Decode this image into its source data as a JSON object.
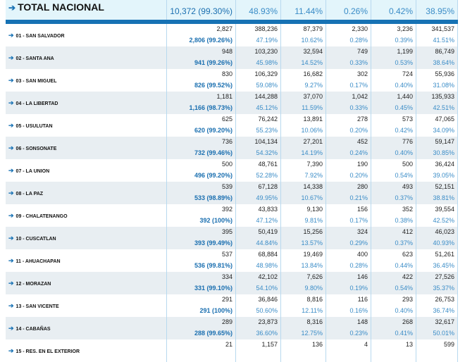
{
  "total": {
    "label": "TOTAL NACIONAL",
    "actas": "10,372 (99.30%)",
    "pcts": [
      "48.93%",
      "11.44%",
      "0.26%",
      "0.42%",
      "38.95%"
    ]
  },
  "departments": [
    {
      "name": "01 - SAN SALVADOR",
      "total": "2,827",
      "votes": [
        "388,236",
        "87,379",
        "2,330",
        "3,236",
        "341,537"
      ],
      "actas": "2,806 (99.26%)",
      "pcts": [
        "47.19%",
        "10.62%",
        "0.28%",
        "0.39%",
        "41.51%"
      ]
    },
    {
      "name": "02 - SANTA ANA",
      "total": "948",
      "votes": [
        "103,230",
        "32,594",
        "749",
        "1,199",
        "86,749"
      ],
      "actas": "941 (99.26%)",
      "pcts": [
        "45.98%",
        "14.52%",
        "0.33%",
        "0.53%",
        "38.64%"
      ]
    },
    {
      "name": "03 - SAN MIGUEL",
      "total": "830",
      "votes": [
        "106,329",
        "16,682",
        "302",
        "724",
        "55,936"
      ],
      "actas": "826 (99.52%)",
      "pcts": [
        "59.08%",
        "9.27%",
        "0.17%",
        "0.40%",
        "31.08%"
      ]
    },
    {
      "name": "04 - LA LIBERTAD",
      "total": "1,181",
      "votes": [
        "144,288",
        "37,070",
        "1,042",
        "1,440",
        "135,933"
      ],
      "actas": "1,166 (98.73%)",
      "pcts": [
        "45.12%",
        "11.59%",
        "0.33%",
        "0.45%",
        "42.51%"
      ]
    },
    {
      "name": "05 - USULUTAN",
      "total": "625",
      "votes": [
        "76,242",
        "13,891",
        "278",
        "573",
        "47,065"
      ],
      "actas": "620 (99.20%)",
      "pcts": [
        "55.23%",
        "10.06%",
        "0.20%",
        "0.42%",
        "34.09%"
      ]
    },
    {
      "name": "06 - SONSONATE",
      "total": "736",
      "votes": [
        "104,134",
        "27,201",
        "452",
        "776",
        "59,147"
      ],
      "actas": "732 (99.46%)",
      "pcts": [
        "54.32%",
        "14.19%",
        "0.24%",
        "0.40%",
        "30.85%"
      ]
    },
    {
      "name": "07 - LA UNION",
      "total": "500",
      "votes": [
        "48,761",
        "7,390",
        "190",
        "500",
        "36,424"
      ],
      "actas": "496 (99.20%)",
      "pcts": [
        "52.28%",
        "7.92%",
        "0.20%",
        "0.54%",
        "39.05%"
      ]
    },
    {
      "name": "08 - LA PAZ",
      "total": "539",
      "votes": [
        "67,128",
        "14,338",
        "280",
        "493",
        "52,151"
      ],
      "actas": "533 (98.89%)",
      "pcts": [
        "49.95%",
        "10.67%",
        "0.21%",
        "0.37%",
        "38.81%"
      ]
    },
    {
      "name": "09 - CHALATENANGO",
      "total": "392",
      "votes": [
        "43,833",
        "9,130",
        "156",
        "352",
        "39,554"
      ],
      "actas": "392 (100%)",
      "pcts": [
        "47.12%",
        "9.81%",
        "0.17%",
        "0.38%",
        "42.52%"
      ]
    },
    {
      "name": "10 - CUSCATLAN",
      "total": "395",
      "votes": [
        "50,419",
        "15,256",
        "324",
        "412",
        "46,023"
      ],
      "actas": "393 (99.49%)",
      "pcts": [
        "44.84%",
        "13.57%",
        "0.29%",
        "0.37%",
        "40.93%"
      ]
    },
    {
      "name": "11 - AHUACHAPAN",
      "total": "537",
      "votes": [
        "68,884",
        "19,469",
        "400",
        "623",
        "51,261"
      ],
      "actas": "536 (99.81%)",
      "pcts": [
        "48.98%",
        "13.84%",
        "0.28%",
        "0.44%",
        "36.45%"
      ]
    },
    {
      "name": "12 - MORAZAN",
      "total": "334",
      "votes": [
        "42,102",
        "7,626",
        "146",
        "422",
        "27,526"
      ],
      "actas": "331 (99.10%)",
      "pcts": [
        "54.10%",
        "9.80%",
        "0.19%",
        "0.54%",
        "35.37%"
      ]
    },
    {
      "name": "13 - SAN VICENTE",
      "total": "291",
      "votes": [
        "36,846",
        "8,816",
        "116",
        "293",
        "26,753"
      ],
      "actas": "291 (100%)",
      "pcts": [
        "50.60%",
        "12.11%",
        "0.16%",
        "0.40%",
        "36.74%"
      ]
    },
    {
      "name": "14 - CABAÑAS",
      "total": "289",
      "votes": [
        "23,873",
        "8,316",
        "148",
        "268",
        "32,617"
      ],
      "actas": "288 (99.65%)",
      "pcts": [
        "36.60%",
        "12.75%",
        "0.23%",
        "0.41%",
        "50.01%"
      ]
    },
    {
      "name": "15 - RES. EN EL EXTERIOR",
      "total": "21",
      "votes": [
        "1,157",
        "136",
        "4",
        "13",
        "599"
      ]
    }
  ],
  "colors": {
    "accent": "#1672b4",
    "total_bg": "#e3f5fb",
    "alt_row": "#e8eef2"
  },
  "icons": {
    "row_link": "arrow-right-icon"
  }
}
